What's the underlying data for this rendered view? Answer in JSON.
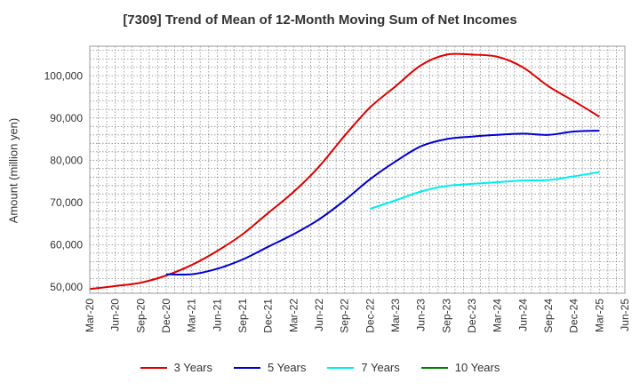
{
  "chart_data": {
    "type": "line",
    "title": "[7309]  Trend of Mean of 12-Month Moving Sum of Net Incomes",
    "xlabel": "",
    "ylabel": "Amount (million yen)",
    "x": [
      "Mar-20",
      "Jun-20",
      "Sep-20",
      "Dec-20",
      "Mar-21",
      "Jun-21",
      "Sep-21",
      "Dec-21",
      "Mar-22",
      "Jun-22",
      "Sep-22",
      "Dec-22",
      "Mar-23",
      "Jun-23",
      "Sep-23",
      "Dec-23",
      "Mar-24",
      "Jun-24",
      "Sep-24",
      "Dec-24",
      "Mar-25",
      "Jun-25"
    ],
    "ylim": [
      48500,
      107000
    ],
    "yticks": [
      50000,
      60000,
      70000,
      80000,
      90000,
      100000
    ],
    "ytick_labels": [
      "50,000",
      "60,000",
      "70,000",
      "80,000",
      "90,000",
      "100,000"
    ],
    "grid": true,
    "legend_position": "bottom",
    "series": [
      {
        "name": "3 Years",
        "color": "#dd0000",
        "values": [
          49500,
          50200,
          51000,
          52700,
          55200,
          58500,
          62500,
          67500,
          72500,
          78500,
          85800,
          92500,
          97500,
          102500,
          105000,
          105000,
          104500,
          102000,
          97500,
          94000,
          90300,
          null
        ]
      },
      {
        "name": "5 Years",
        "color": "#0000cc",
        "values": [
          null,
          null,
          null,
          53000,
          53000,
          54300,
          56500,
          59500,
          62500,
          66000,
          70500,
          75500,
          79700,
          83300,
          85000,
          85600,
          86000,
          86300,
          86000,
          86800,
          87000,
          null
        ]
      },
      {
        "name": "7 Years",
        "color": "#00eeee",
        "values": [
          null,
          null,
          null,
          null,
          null,
          null,
          null,
          null,
          null,
          null,
          null,
          68500,
          70500,
          72600,
          73900,
          74400,
          74800,
          75200,
          75300,
          76200,
          77200,
          null
        ]
      },
      {
        "name": "10 Years",
        "color": "#008000",
        "values": [
          null,
          null,
          null,
          null,
          null,
          null,
          null,
          null,
          null,
          null,
          null,
          null,
          null,
          null,
          null,
          null,
          null,
          null,
          null,
          null,
          null,
          null
        ]
      }
    ]
  }
}
